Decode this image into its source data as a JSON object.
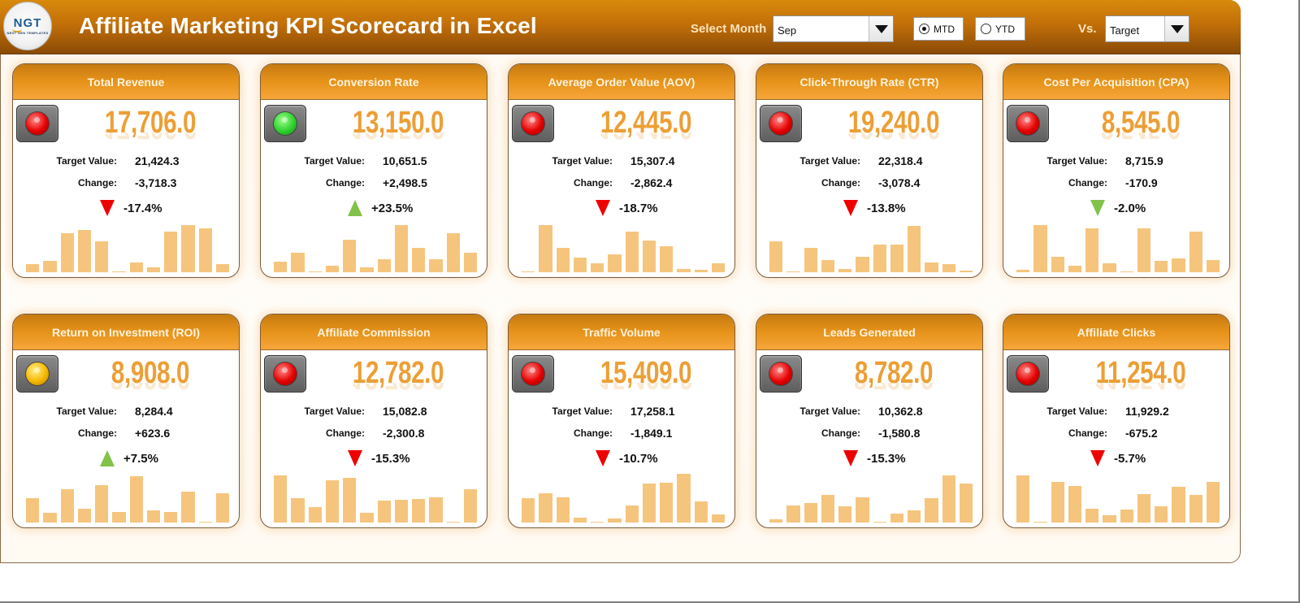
{
  "header": {
    "logo": {
      "main": "NGT",
      "sub": "NEXT GEN TEMPLATES"
    },
    "title": "Affiliate Marketing KPI Scorecard in Excel",
    "select_month_label": "Select Month",
    "month_value": "Sep",
    "radio_mtd": {
      "label": "MTD",
      "selected": true
    },
    "radio_ytd": {
      "label": "YTD",
      "selected": false
    },
    "vs_label": "Vs.",
    "vs_value": "Target"
  },
  "labels": {
    "target": "Target Value:",
    "change": "Change:"
  },
  "colors": {
    "accent": "#e6931a",
    "value": "#ec9f35",
    "bar": "#f5c57e",
    "down": "#ee0000",
    "up": "#82c24a",
    "light_red": "#e60000",
    "light_green": "#2fd12f",
    "light_yellow": "#f5b800"
  },
  "cards": [
    {
      "title": "Total Revenue",
      "light": "red",
      "value": "17,706.0",
      "target": "21,424.3",
      "change": "-3,718.3",
      "pct": "-17.4%",
      "arrow": "down",
      "bars": [
        10,
        14,
        48,
        52,
        38,
        1,
        12,
        6,
        50,
        58,
        54,
        10
      ]
    },
    {
      "title": "Conversion Rate",
      "light": "green",
      "value": "13,150.0",
      "target": "10,651.5",
      "change": "+2,498.5",
      "pct": "+23.5%",
      "arrow": "up",
      "bars": [
        13,
        24,
        1,
        8,
        40,
        6,
        16,
        58,
        30,
        16,
        48,
        24
      ]
    },
    {
      "title": "Average Order Value (AOV)",
      "light": "red",
      "value": "12,445.0",
      "target": "15,307.4",
      "change": "-2,862.4",
      "pct": "-18.7%",
      "arrow": "down",
      "bars": [
        1,
        58,
        30,
        18,
        11,
        22,
        50,
        39,
        32,
        4,
        3,
        11
      ]
    },
    {
      "title": "Click-Through Rate (CTR)",
      "light": "red",
      "value": "19,240.0",
      "target": "22,318.4",
      "change": "-3,078.4",
      "pct": "-13.8%",
      "arrow": "down",
      "bars": [
        38,
        1,
        30,
        15,
        4,
        19,
        34,
        34,
        57,
        12,
        10,
        2
      ]
    },
    {
      "title": "Cost Per Acquisition (CPA)",
      "light": "red",
      "value": "8,545.0",
      "target": "8,715.9",
      "change": "-170.9",
      "pct": "-2.0%",
      "arrow": "down-green",
      "bars": [
        3,
        58,
        19,
        8,
        54,
        11,
        1,
        54,
        14,
        17,
        50,
        15
      ]
    },
    {
      "title": "Return on Investment (ROI)",
      "light": "yellow",
      "value": "8,908.0",
      "target": "8,284.4",
      "change": "+623.6",
      "pct": "+7.5%",
      "arrow": "up",
      "bars": [
        30,
        12,
        41,
        17,
        46,
        13,
        57,
        15,
        13,
        38,
        1,
        36
      ]
    },
    {
      "title": "Affiliate Commission",
      "light": "red",
      "value": "12,782.0",
      "target": "15,082.8",
      "change": "-2,300.8",
      "pct": "-15.3%",
      "arrow": "down",
      "bars": [
        58,
        30,
        19,
        52,
        55,
        12,
        27,
        28,
        29,
        31,
        1,
        41
      ]
    },
    {
      "title": "Traffic Volume",
      "light": "red",
      "value": "15,409.0",
      "target": "17,258.1",
      "change": "-1,849.1",
      "pct": "-10.7%",
      "arrow": "down",
      "bars": [
        30,
        36,
        31,
        6,
        1,
        5,
        21,
        48,
        49,
        60,
        26,
        10
      ]
    },
    {
      "title": "Leads Generated",
      "light": "red",
      "value": "8,782.0",
      "target": "10,362.8",
      "change": "-1,580.8",
      "pct": "-15.3%",
      "arrow": "down",
      "bars": [
        4,
        21,
        24,
        34,
        20,
        31,
        1,
        11,
        15,
        30,
        58,
        48
      ]
    },
    {
      "title": "Affiliate Clicks",
      "light": "red",
      "value": "11,254.0",
      "target": "11,929.2",
      "change": "-675.2",
      "pct": "-5.7%",
      "arrow": "down",
      "bars": [
        58,
        1,
        50,
        45,
        17,
        9,
        16,
        35,
        20,
        44,
        34,
        50
      ]
    }
  ]
}
